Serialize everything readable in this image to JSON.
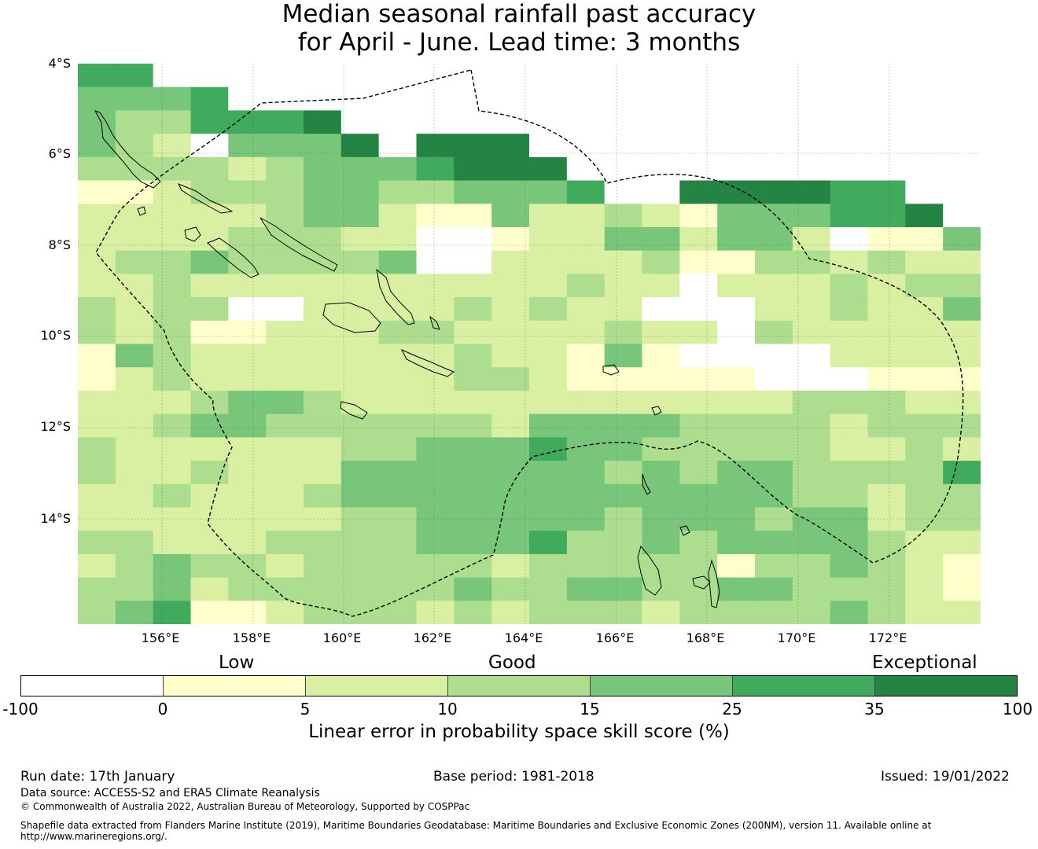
{
  "title": {
    "line1": "Median seasonal rainfall past accuracy",
    "line2": "for April - June. Lead time: 3 months"
  },
  "map": {
    "lat_labels": [
      "4°S",
      "6°S",
      "8°S",
      "10°S",
      "12°S",
      "14°S"
    ],
    "lon_labels": [
      "156°E",
      "158°E",
      "160°E",
      "162°E",
      "164°E",
      "166°E",
      "168°E",
      "170°E",
      "172°E"
    ],
    "grid_rows": [
      "557777777777777777777777",
      "444577777777777777777777",
      "433555677777777777777777",
      "432044467666777777777777",
      "333323444566677777777777",
      "112333443344457766665577",
      "222223442114223214445567",
      "222233322001224424420114",
      "233433334002222311332322",
      "223222222222232202223233",
      "323300222232322000223224",
      "323112223322223220322222",
      "143222222232214100002222",
      "123222222233211111000111",
      "222344322222222222233322",
      "223443333332444433332333",
      "322222233444544333332232",
      "322322244444443434433335",
      "223222344444444444433233",
      "222222233444443444344233",
      "332223333444533434444322",
      "234332333332333331334321",
      "334233333343344334433321",
      "345112333232333233334322"
    ],
    "legend_colors": [
      "#ffffff",
      "#ffffcc",
      "#d9f0a3",
      "#addd8e",
      "#78c679",
      "#41ab5d",
      "#238443"
    ]
  },
  "colorbar": {
    "categories": [
      "Low",
      "Good",
      "Exceptional"
    ],
    "ticks": [
      "-100",
      "0",
      "5",
      "10",
      "15",
      "25",
      "35",
      "100"
    ],
    "label": "Linear error in probability space skill score (%)"
  },
  "footer": {
    "run_date": "Run date: 17th January",
    "base_period": "Base period: 1981-2018",
    "issued": "Issued: 19/01/2022",
    "data_source": "Data source: ACCESS-S2 and ERA5 Climate Reanalysis",
    "copyright": "© Commonwealth of Australia 2022, Australian Bureau of Meteorology, Supported by COSPPac",
    "shapefile_line1": "Shapefile data extracted from Flanders Marine Institute (2019), Maritime Boundaries Geodatabase: Maritime Boundaries and Exclusive Economic Zones (200NM), version 11. Available online at",
    "shapefile_line2": "http://www.marineregions.org/."
  }
}
